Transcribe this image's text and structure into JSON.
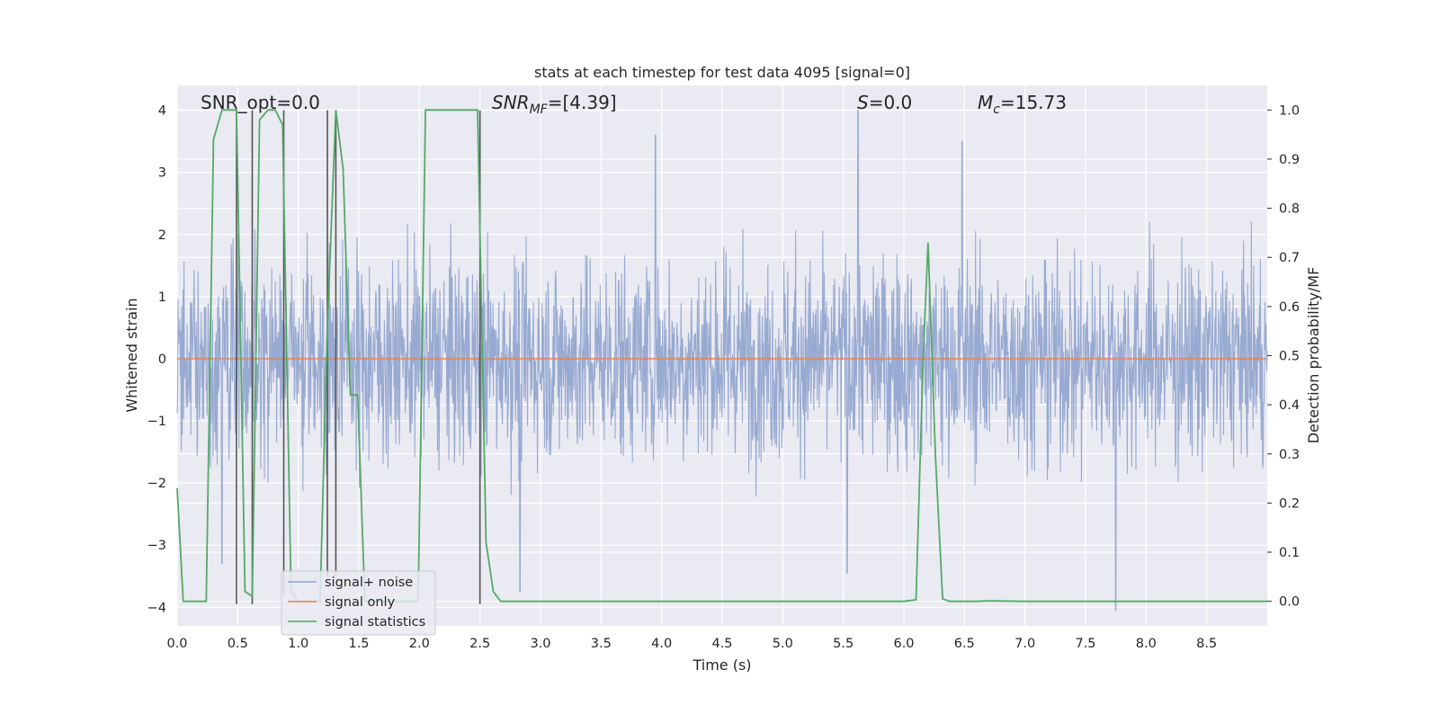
{
  "chart_data": {
    "type": "line",
    "title": "stats at each timestep for test data 4095 [signal=0]",
    "xlabel": "Time (s)",
    "ylabel": "Whitened strain",
    "y2label": "Detection probability/MF",
    "xlim": [
      0.0,
      9.0
    ],
    "ylim": [
      -4.3,
      4.4
    ],
    "y2lim": [
      -0.05,
      1.05
    ],
    "xticks": [
      "0.0",
      "0.5",
      "1.0",
      "1.5",
      "2.0",
      "2.5",
      "3.0",
      "3.5",
      "4.0",
      "4.5",
      "5.0",
      "5.5",
      "6.0",
      "6.5",
      "7.0",
      "7.5",
      "8.0",
      "8.5"
    ],
    "xtick_values": [
      0.0,
      0.5,
      1.0,
      1.5,
      2.0,
      2.5,
      3.0,
      3.5,
      4.0,
      4.5,
      5.0,
      5.5,
      6.0,
      6.5,
      7.0,
      7.5,
      8.0,
      8.5
    ],
    "yticks": [
      "4",
      "3",
      "2",
      "1",
      "0",
      "−1",
      "−2",
      "−3",
      "−4"
    ],
    "ytick_values": [
      4,
      3,
      2,
      1,
      0,
      -1,
      -2,
      -3,
      -4
    ],
    "y2ticks": [
      "1.0",
      "0.9",
      "0.8",
      "0.7",
      "0.6",
      "0.5",
      "0.4",
      "0.3",
      "0.2",
      "0.1",
      "0.0"
    ],
    "y2tick_values": [
      1.0,
      0.9,
      0.8,
      0.7,
      0.6,
      0.5,
      0.4,
      0.3,
      0.2,
      0.1,
      0.0
    ],
    "grid": true,
    "legend_position": "lower-left",
    "annotations": {
      "snr_opt": "SNR_opt=0.0",
      "snr_mf_label": "SNR",
      "snr_mf_sub": "MF",
      "snr_mf_value": "=[4.39]",
      "s_label": "S",
      "s_value": "=0.0",
      "mc_label": "M",
      "mc_sub": "c",
      "mc_value": "=15.73"
    },
    "series": [
      {
        "name": "signal+ noise",
        "color": "#8fa3cd",
        "style": "dense noise",
        "amplitude_envelope": 2.5,
        "peak_values": [
          [
            5.62,
            4.0
          ],
          [
            3.95,
            3.6
          ],
          [
            6.48,
            3.5
          ],
          [
            0.37,
            -3.3
          ],
          [
            2.83,
            -3.75
          ],
          [
            7.75,
            -4.05
          ],
          [
            5.53,
            -3.45
          ]
        ]
      },
      {
        "name": "signal only",
        "color": "#dd8452",
        "x": [
          0.0,
          9.0
        ],
        "y": [
          0.0,
          0.0
        ]
      },
      {
        "name": "signal statistics",
        "color": "#55a868",
        "axis": "right",
        "x": [
          0.0,
          0.05,
          0.24,
          0.3,
          0.37,
          0.43,
          0.49,
          0.56,
          0.62,
          0.68,
          0.75,
          0.81,
          0.87,
          0.94,
          1.0,
          1.06,
          1.12,
          1.18,
          1.24,
          1.31,
          1.37,
          1.43,
          1.49,
          1.55,
          1.62,
          1.68,
          1.74,
          1.8,
          1.86,
          1.93,
          1.99,
          2.05,
          2.11,
          2.17,
          2.24,
          2.3,
          2.36,
          2.42,
          2.48,
          2.55,
          2.61,
          2.67,
          2.73,
          3.1,
          4.0,
          5.0,
          6.0,
          6.1,
          6.16,
          6.2,
          6.26,
          6.32,
          6.38,
          6.6,
          6.7,
          7.0,
          8.0,
          9.0
        ],
        "y": [
          0.23,
          0.0,
          0.0,
          0.94,
          1.0,
          1.0,
          1.0,
          0.02,
          0.01,
          0.98,
          1.0,
          1.0,
          0.97,
          0.02,
          0.0,
          0.0,
          0.0,
          0.0,
          0.56,
          1.0,
          0.88,
          0.42,
          0.42,
          0.0,
          0.0,
          0.0,
          0.0,
          0.0,
          0.0,
          0.0,
          0.0,
          1.0,
          1.0,
          1.0,
          1.0,
          1.0,
          1.0,
          1.0,
          1.0,
          0.12,
          0.02,
          0.0,
          0.0,
          0.0,
          0.0,
          0.0,
          0.0,
          0.003,
          0.5,
          0.73,
          0.3,
          0.005,
          0.0,
          0.0,
          0.001,
          0.0,
          0.0,
          0.0
        ]
      }
    ],
    "event_markers": {
      "color": "#555555",
      "x": [
        0.24,
        0.49,
        0.62,
        0.88,
        1.24,
        1.31,
        2.0,
        2.5
      ],
      "y_top": [
        4.0,
        4.0,
        4.0,
        4.0,
        4.0,
        4.0,
        4.0,
        4.0
      ],
      "y_bottom": [
        4.0,
        -3.95,
        -3.95,
        -3.8,
        -3.5,
        -3.5,
        4.0,
        -3.95
      ]
    }
  }
}
